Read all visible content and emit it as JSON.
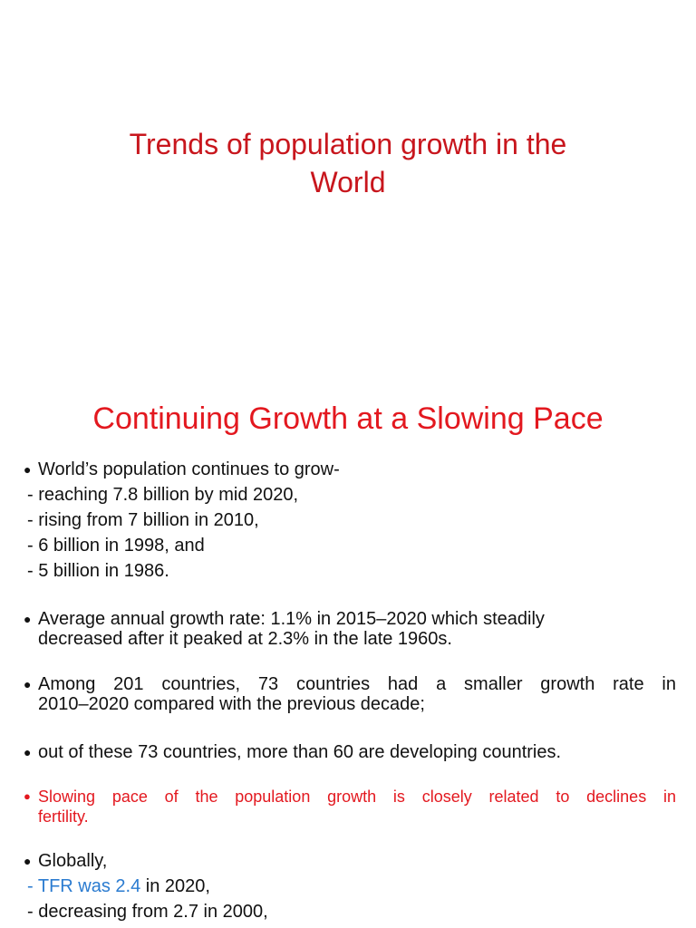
{
  "slide1": {
    "title_line1": "Trends of population growth in the",
    "title_line2": "World"
  },
  "slide2": {
    "heading": "Continuing Growth at a Slowing Pace",
    "bullet1": {
      "head": "World’s population continues to grow-",
      "subs": [
        "- reaching 7.8 billion by mid 2020,",
        "- rising from 7 billion in 2010,",
        "- 6 billion in 1998, and",
        "- 5 billion in 1986."
      ]
    },
    "bullet2": {
      "line1": "Average annual  growth  rate: 1.1% in  2015–2020 which steadily",
      "line2": "decreased after it peaked at 2.3% in the late  1960s."
    },
    "bullet3": {
      "line1": "Among  201  countries,  73 countries  had  a  smaller growth  rate  in",
      "line2": "2010–2020 compared  with  the  previous  decade;"
    },
    "bullet4": {
      "line1": "out  of  these 73  countries,  more  than  60  are  developing  countries."
    },
    "bullet5": {
      "line1": "Slowing pace  of  the  population  growth  is  closely related  to  declines  in",
      "line2": "fertility."
    },
    "bullet6": {
      "head": "Globally,",
      "sub1_highlight": "- TFR was 2.4",
      "sub1_rest": " in 2020,",
      "sub2": "- decreasing from 2.7 in 2000,"
    }
  },
  "colors": {
    "title_red": "#c8161d",
    "heading_red": "#e3181f",
    "highlight_blue": "#2a7bd0"
  }
}
